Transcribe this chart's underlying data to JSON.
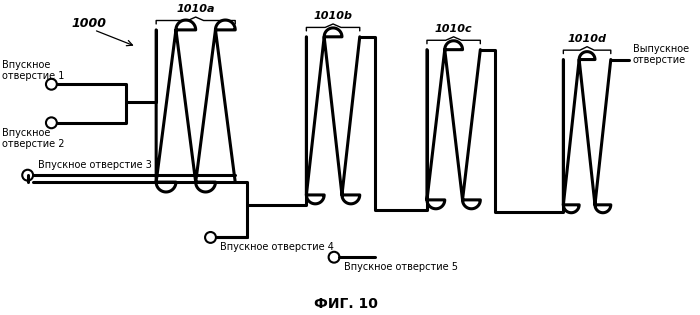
{
  "title": "ФИГ. 10",
  "labels": {
    "main": "1000",
    "inlet1": "Впускное\nотверстие 1",
    "inlet2": "Впускное\nотверстие 2",
    "inlet3": "Впускное отверстие 3",
    "inlet4": "Впускное отверстие 4",
    "inlet5": "Впускное отверстие 5",
    "outlet": "Выпускное\nотверстие",
    "seg_a": "1010a",
    "seg_b": "1010b",
    "seg_c": "1010c",
    "seg_d": "1010d"
  },
  "line_color": "#000000",
  "bg_color": "#ffffff"
}
